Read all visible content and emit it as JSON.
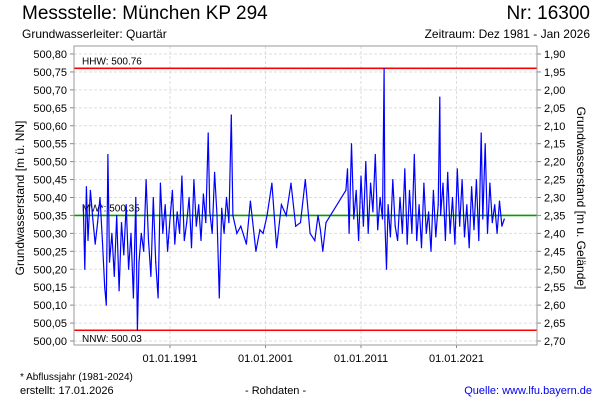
{
  "header": {
    "title": "Messstelle: München KP 294",
    "number": "Nr: 16300",
    "aquifer": "Grundwasserleiter: Quartär",
    "period": "Zeitraum: Dez 1981 - Jan 2026"
  },
  "footer": {
    "footnote": "* Abflussjahr (1981-2024)",
    "created": "erstellt:  17.01.2026",
    "raw": "- Rohdaten -",
    "source": "Quelle: www.lfu.bayern.de"
  },
  "chart_data": {
    "type": "line",
    "ylabel": "Grundwasserstand [m ü. NN]",
    "ylabel_right": "Grundwasserstand [m u. Gelände]",
    "ylim": [
      500.0,
      500.8
    ],
    "y_ticks": [
      "500,00",
      "500,05",
      "500,10",
      "500,15",
      "500,20",
      "500,25",
      "500,30",
      "500,35",
      "500,40",
      "500,45",
      "500,50",
      "500,55",
      "500,60",
      "500,65",
      "500,70",
      "500,75",
      "500,80"
    ],
    "y_right_ticks": [
      "2,70",
      "2,65",
      "2,60",
      "2,55",
      "2,50",
      "2,45",
      "2,40",
      "2,35",
      "2,30",
      "2,25",
      "2,20",
      "2,15",
      "2,10",
      "2,05",
      "2,00",
      "1,95",
      "1,90"
    ],
    "x_ticks": [
      "01.01.1991",
      "01.01.2001",
      "01.01.2011",
      "01.01.2021"
    ],
    "grid": true,
    "reference_lines": [
      {
        "label": "HHW: 500.76",
        "value": 500.76,
        "color": "#ff0000"
      },
      {
        "label": "MW*: 500.35",
        "value": 500.35,
        "color": "#00a000"
      },
      {
        "label": "NNW: 500.03",
        "value": 500.03,
        "color": "#ff0000"
      }
    ],
    "series": [
      {
        "color": "#0000ff",
        "points": [
          [
            "1981-12",
            500.38
          ],
          [
            "1982-02",
            500.2
          ],
          [
            "1982-04",
            500.43
          ],
          [
            "1982-06",
            500.28
          ],
          [
            "1982-09",
            500.42
          ],
          [
            "1982-12",
            500.34
          ],
          [
            "1983-03",
            500.27
          ],
          [
            "1983-06",
            500.33
          ],
          [
            "1983-09",
            500.4
          ],
          [
            "1983-12",
            500.28
          ],
          [
            "1984-03",
            500.15
          ],
          [
            "1984-05",
            500.1
          ],
          [
            "1984-07",
            500.52
          ],
          [
            "1984-09",
            500.22
          ],
          [
            "1984-12",
            500.3
          ],
          [
            "1985-03",
            500.18
          ],
          [
            "1985-06",
            500.35
          ],
          [
            "1985-09",
            500.14
          ],
          [
            "1985-12",
            500.33
          ],
          [
            "1986-03",
            500.24
          ],
          [
            "1986-06",
            500.38
          ],
          [
            "1986-09",
            500.2
          ],
          [
            "1986-12",
            500.3
          ],
          [
            "1987-03",
            500.12
          ],
          [
            "1987-06",
            500.4
          ],
          [
            "1987-08",
            500.03
          ],
          [
            "1987-10",
            500.22
          ],
          [
            "1988-01",
            500.3
          ],
          [
            "1988-04",
            500.25
          ],
          [
            "1988-07",
            500.45
          ],
          [
            "1988-10",
            500.28
          ],
          [
            "1989-01",
            500.18
          ],
          [
            "1989-04",
            500.4
          ],
          [
            "1989-07",
            500.22
          ],
          [
            "1989-10",
            500.12
          ],
          [
            "1990-01",
            500.44
          ],
          [
            "1990-04",
            500.3
          ],
          [
            "1990-07",
            500.38
          ],
          [
            "1990-10",
            500.25
          ],
          [
            "1991-01",
            500.34
          ],
          [
            "1991-04",
            500.42
          ],
          [
            "1991-07",
            500.27
          ],
          [
            "1991-10",
            500.36
          ],
          [
            "1992-01",
            500.3
          ],
          [
            "1992-04",
            500.46
          ],
          [
            "1992-07",
            500.28
          ],
          [
            "1992-10",
            500.33
          ],
          [
            "1993-01",
            500.4
          ],
          [
            "1993-04",
            500.26
          ],
          [
            "1993-07",
            500.45
          ],
          [
            "1993-10",
            500.32
          ],
          [
            "1994-01",
            500.38
          ],
          [
            "1994-04",
            500.28
          ],
          [
            "1994-07",
            500.41
          ],
          [
            "1994-10",
            500.33
          ],
          [
            "1995-01",
            500.58
          ],
          [
            "1995-03",
            500.36
          ],
          [
            "1995-06",
            500.3
          ],
          [
            "1995-09",
            500.47
          ],
          [
            "1995-12",
            500.35
          ],
          [
            "1996-03",
            500.12
          ],
          [
            "1996-06",
            500.37
          ],
          [
            "1996-09",
            500.3
          ],
          [
            "1996-12",
            500.4
          ],
          [
            "1997-03",
            500.33
          ],
          [
            "1997-06",
            500.63
          ],
          [
            "1997-08",
            500.35
          ],
          [
            "1998-01",
            500.3
          ],
          [
            "1998-06",
            500.32
          ],
          [
            "1999-01",
            500.27
          ],
          [
            "1999-06",
            500.39
          ],
          [
            "2000-01",
            500.25
          ],
          [
            "2000-06",
            500.31
          ],
          [
            "2000-10",
            500.3
          ],
          [
            "2001-03",
            500.35
          ],
          [
            "2001-09",
            500.44
          ],
          [
            "2002-03",
            500.26
          ],
          [
            "2002-09",
            500.38
          ],
          [
            "2003-03",
            500.35
          ],
          [
            "2003-09",
            500.44
          ],
          [
            "2004-03",
            500.32
          ],
          [
            "2004-09",
            500.33
          ],
          [
            "2005-03",
            500.45
          ],
          [
            "2005-09",
            500.3
          ],
          [
            "2006-03",
            500.28
          ],
          [
            "2006-07",
            500.35
          ],
          [
            "2006-10",
            500.31
          ],
          [
            "2007-01",
            500.25
          ],
          [
            "2007-05",
            500.33
          ],
          [
            "2009-06",
            500.42
          ],
          [
            "2009-08",
            500.48
          ],
          [
            "2009-10",
            500.3
          ],
          [
            "2010-01",
            500.55
          ],
          [
            "2010-04",
            500.34
          ],
          [
            "2010-07",
            500.42
          ],
          [
            "2010-10",
            500.28
          ],
          [
            "2011-01",
            500.46
          ],
          [
            "2011-04",
            500.32
          ],
          [
            "2011-07",
            500.5
          ],
          [
            "2011-10",
            500.3
          ],
          [
            "2012-01",
            500.44
          ],
          [
            "2012-04",
            500.36
          ],
          [
            "2012-07",
            500.52
          ],
          [
            "2012-10",
            500.31
          ],
          [
            "2013-01",
            500.4
          ],
          [
            "2013-04",
            500.34
          ],
          [
            "2013-06",
            500.76
          ],
          [
            "2013-07",
            500.33
          ],
          [
            "2013-09",
            500.2
          ],
          [
            "2013-11",
            500.38
          ],
          [
            "2014-02",
            500.29
          ],
          [
            "2014-05",
            500.45
          ],
          [
            "2014-08",
            500.32
          ],
          [
            "2014-11",
            500.28
          ],
          [
            "2015-02",
            500.4
          ],
          [
            "2015-05",
            500.3
          ],
          [
            "2015-08",
            500.48
          ],
          [
            "2015-11",
            500.27
          ],
          [
            "2016-02",
            500.42
          ],
          [
            "2016-05",
            500.3
          ],
          [
            "2016-08",
            500.52
          ],
          [
            "2016-11",
            500.28
          ],
          [
            "2017-02",
            500.38
          ],
          [
            "2017-05",
            500.26
          ],
          [
            "2017-08",
            500.44
          ],
          [
            "2017-11",
            500.3
          ],
          [
            "2018-02",
            500.36
          ],
          [
            "2018-05",
            500.25
          ],
          [
            "2018-08",
            500.42
          ],
          [
            "2018-11",
            500.29
          ],
          [
            "2019-02",
            500.38
          ],
          [
            "2019-04",
            500.68
          ],
          [
            "2019-05",
            500.35
          ],
          [
            "2019-08",
            500.44
          ],
          [
            "2019-11",
            500.28
          ],
          [
            "2020-02",
            500.47
          ],
          [
            "2020-05",
            500.3
          ],
          [
            "2020-08",
            500.4
          ],
          [
            "2020-11",
            500.27
          ],
          [
            "2021-02",
            500.48
          ],
          [
            "2021-05",
            500.32
          ],
          [
            "2021-08",
            500.45
          ],
          [
            "2021-11",
            500.29
          ],
          [
            "2022-02",
            500.38
          ],
          [
            "2022-05",
            500.26
          ],
          [
            "2022-08",
            500.43
          ],
          [
            "2022-11",
            500.31
          ],
          [
            "2023-02",
            500.45
          ],
          [
            "2023-05",
            500.28
          ],
          [
            "2023-08",
            500.58
          ],
          [
            "2023-10",
            500.34
          ],
          [
            "2024-01",
            500.55
          ],
          [
            "2024-04",
            500.3
          ],
          [
            "2024-07",
            500.44
          ],
          [
            "2024-10",
            500.33
          ],
          [
            "2025-01",
            500.38
          ],
          [
            "2025-04",
            500.3
          ],
          [
            "2025-07",
            500.39
          ],
          [
            "2025-10",
            500.32
          ],
          [
            "2026-01",
            500.34
          ]
        ]
      }
    ]
  }
}
